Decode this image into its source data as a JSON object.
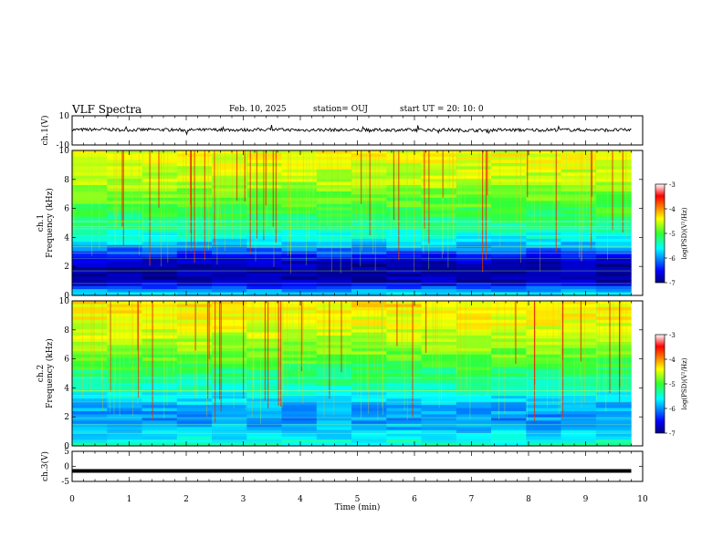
{
  "header": {
    "title": "VLF Spectra",
    "date": "Feb. 10, 2025",
    "station": "station= OUJ",
    "start_ut": "start  UT  =   20: 10: 0"
  },
  "colors": {
    "spectrogram_low": "#00007f",
    "spectrogram_mid": "#2ee62e",
    "spectrogram_high": "#e60000",
    "waveform": "#000000"
  },
  "chart_data": [
    {
      "type": "line",
      "name": "ch1-waveform",
      "ylabel": "ch.1(V)",
      "ylim": [
        -10,
        10
      ],
      "yticks": [
        "10",
        "-10"
      ],
      "xlim": [
        0,
        10
      ],
      "x": [
        0,
        0.5,
        1,
        1.5,
        2,
        2.5,
        3,
        3.5,
        4,
        4.5,
        5,
        5.5,
        6,
        6.5,
        7,
        7.5,
        8,
        8.5,
        9,
        9.5,
        9.8
      ],
      "y": [
        0.4,
        0.6,
        0.3,
        0.5,
        0.2,
        0.4,
        0.3,
        0.6,
        0.2,
        0.4,
        0.1,
        0.3,
        0.2,
        0.4,
        0.0,
        0.3,
        0.2,
        0.4,
        0.3,
        0.2,
        0.3
      ]
    },
    {
      "type": "heatmap",
      "name": "ch1-spectrogram",
      "ylabel": "ch.1 Frequency (kHz)",
      "ylim": [
        0,
        10
      ],
      "yticks": [
        "0",
        "2",
        "4",
        "6",
        "8",
        "10"
      ],
      "xlim": [
        0,
        10
      ],
      "zlim": [
        -7,
        -3
      ],
      "colorbar_label": "log(PSD)(V²/Hz)",
      "colorbar_ticks": [
        "-3",
        "-4",
        "-5",
        "-6",
        "-7"
      ],
      "profile_freq_khz": [
        0,
        0.4,
        0.9,
        1.5,
        2.2,
        2.8,
        3.5,
        4.5,
        6,
        8,
        10
      ],
      "profile_log_psd": [
        -5.6,
        -6.0,
        -6.8,
        -6.9,
        -6.8,
        -6.4,
        -5.8,
        -5.4,
        -5.0,
        -4.6,
        -4.4
      ]
    },
    {
      "type": "heatmap",
      "name": "ch2-spectrogram",
      "ylabel": "ch.2 Frequency (kHz)",
      "ylim": [
        0,
        10
      ],
      "yticks": [
        "0",
        "2",
        "4",
        "6",
        "8",
        "10"
      ],
      "xlim": [
        0,
        10
      ],
      "zlim": [
        -7,
        -3
      ],
      "colorbar_label": "log(PSD)(V²/Hz)",
      "colorbar_ticks": [
        "-3",
        "-4",
        "-5",
        "-6",
        "-7"
      ],
      "profile_freq_khz": [
        0,
        0.5,
        1,
        2,
        3,
        4,
        5,
        6,
        8,
        10
      ],
      "profile_log_psd": [
        -5.4,
        -5.6,
        -5.8,
        -6.0,
        -5.8,
        -5.4,
        -5.2,
        -4.9,
        -4.5,
        -4.3
      ]
    },
    {
      "type": "line",
      "name": "ch3-waveform",
      "ylabel": "ch.3(V)",
      "ylim": [
        -5,
        5
      ],
      "yticks": [
        "5",
        "0",
        "-5"
      ],
      "xlim": [
        0,
        10
      ],
      "x": [
        0,
        9.8
      ],
      "y": [
        -1.5,
        -1.5
      ]
    }
  ],
  "xaxis": {
    "label": "Time  (min)",
    "ticks": [
      "0",
      "1",
      "2",
      "3",
      "4",
      "5",
      "6",
      "7",
      "8",
      "9",
      "10"
    ],
    "range": [
      0,
      10
    ]
  }
}
